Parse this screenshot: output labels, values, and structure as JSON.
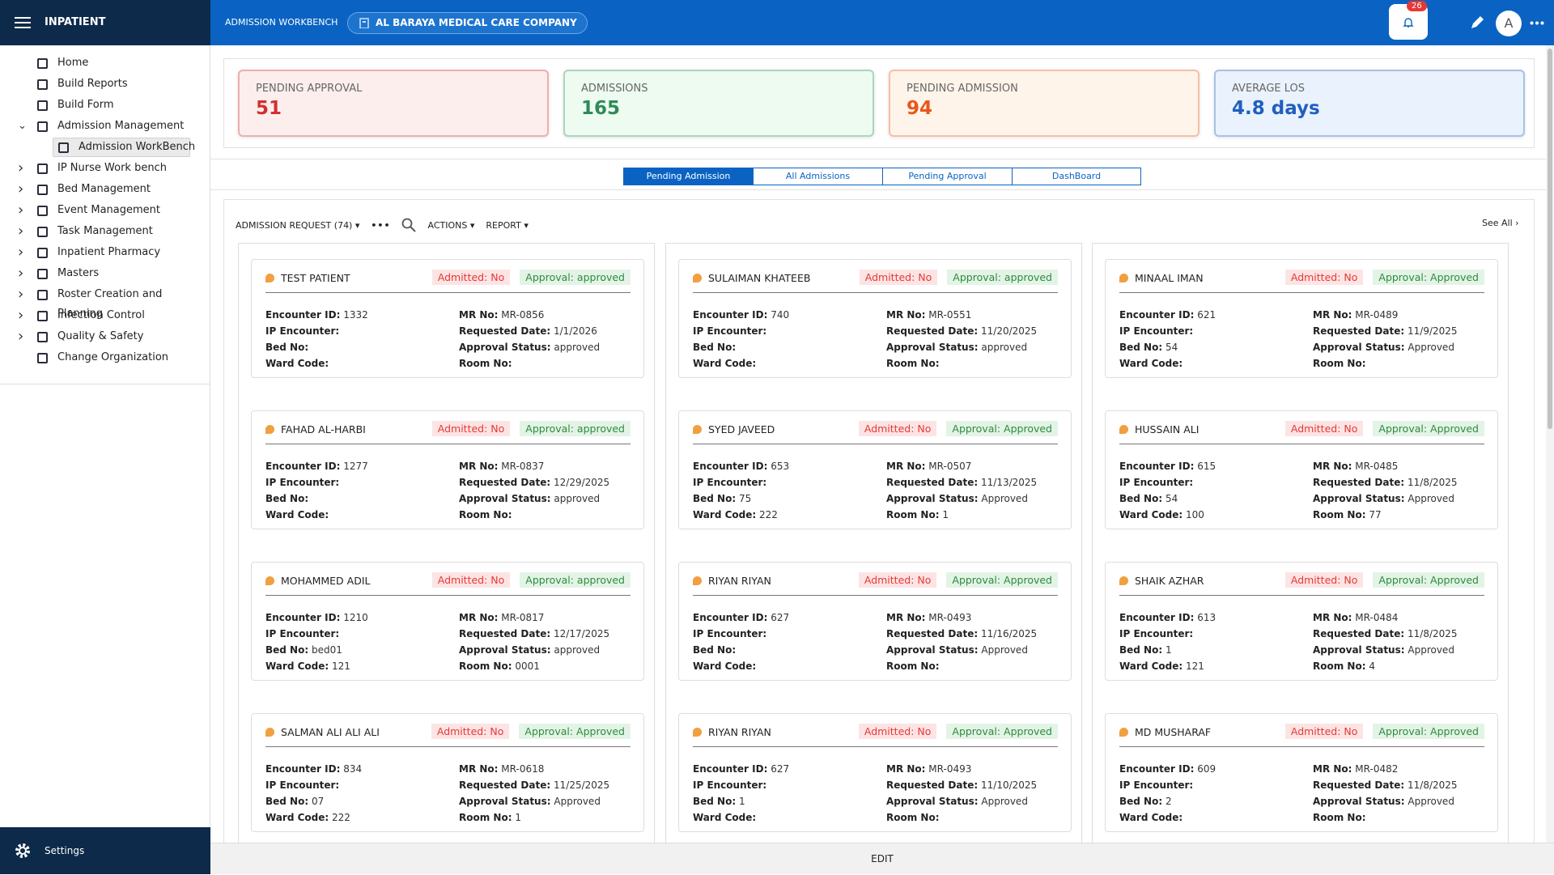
{
  "header": {
    "app_title": "INPATIENT",
    "page_title": "ADMISSION WORKBENCH",
    "organization": "AL BARAYA MEDICAL CARE COMPANY",
    "notification_count": 26,
    "avatar": "A"
  },
  "sidebar": {
    "items": [
      {
        "label": "Home"
      },
      {
        "label": "Build Reports"
      },
      {
        "label": "Build Form"
      },
      {
        "label": "Admission Management",
        "expand": "open"
      },
      {
        "label": "Admission WorkBench",
        "level": 2,
        "selected": true
      },
      {
        "label": "IP Nurse Work bench",
        "expand": "closed"
      },
      {
        "label": "Bed Management",
        "expand": "closed"
      },
      {
        "label": "Event Management",
        "expand": "closed"
      },
      {
        "label": "Task Management",
        "expand": "closed"
      },
      {
        "label": "Inpatient Pharmacy",
        "expand": "closed"
      },
      {
        "label": "Masters",
        "expand": "closed"
      },
      {
        "label": "Roster Creation and Planning",
        "expand": "closed"
      },
      {
        "label": "Infection Control",
        "expand": "closed"
      },
      {
        "label": "Quality & Safety",
        "expand": "closed"
      },
      {
        "label": "Change Organization"
      }
    ],
    "settings": "Settings"
  },
  "kpis": [
    {
      "label": "PENDING APPROVAL",
      "value": 51,
      "color": "#d32f2f"
    },
    {
      "label": "ADMISSIONS",
      "value": 165,
      "color": "#2e8b57"
    },
    {
      "label": "PENDING ADMISSION",
      "value": 94,
      "color": "#e8581c"
    },
    {
      "label": "AVERAGE LOS",
      "value": "4.8 days",
      "color": "#1f5fbf"
    }
  ],
  "tabs": {
    "items": [
      "Pending Admission",
      "All Admissions",
      "Pending Approval",
      "DashBoard"
    ],
    "active": 0
  },
  "toolbar": {
    "request": "ADMISSION REQUEST (74)",
    "actions": "ACTIONS",
    "report": "REPORT",
    "see_all": "See All"
  },
  "field_labels": {
    "encounter_id": "Encounter ID:",
    "ip_encounter": "IP Encounter:",
    "bed_no": "Bed No:",
    "ward_code": "Ward Code:",
    "mr_no": "MR No:",
    "requested_date": "Requested Date:",
    "approval_status": "Approval Status:",
    "room_no": "Room No:"
  },
  "patients": [
    {
      "name": "TEST PATIENT",
      "admitted": "Admitted: No",
      "approval": "Approval: approved",
      "fields": {
        "encounter_id": "1332",
        "mr_no": "MR-0856",
        "requested_date": "1/1/2026",
        "approval_status": "approved"
      }
    },
    {
      "name": "SULAIMAN KHATEEB",
      "admitted": "Admitted: No",
      "approval": "Approval: approved",
      "fields": {
        "encounter_id": "740",
        "mr_no": "MR-0551",
        "requested_date": "11/20/2025",
        "approval_status": "approved"
      }
    },
    {
      "name": "MINAAL IMAN",
      "admitted": "Admitted: No",
      "approval": "Approval: Approved",
      "fields": {
        "encounter_id": "621",
        "bed_no": "54",
        "mr_no": "MR-0489",
        "requested_date": "11/9/2025",
        "approval_status": "Approved"
      }
    },
    {
      "name": "FAHAD AL-HARBI",
      "admitted": "Admitted: No",
      "approval": "Approval: approved",
      "fields": {
        "encounter_id": "1277",
        "mr_no": "MR-0837",
        "requested_date": "12/29/2025",
        "approval_status": "approved"
      }
    },
    {
      "name": "SYED JAVEED",
      "admitted": "Admitted: No",
      "approval": "Approval: Approved",
      "fields": {
        "encounter_id": "653",
        "bed_no": "75",
        "ward_code": "222",
        "mr_no": "MR-0507",
        "requested_date": "11/13/2025",
        "approval_status": "Approved",
        "room_no": "1"
      }
    },
    {
      "name": "HUSSAIN ALI",
      "admitted": "Admitted: No",
      "approval": "Approval: Approved",
      "fields": {
        "encounter_id": "615",
        "bed_no": "54",
        "ward_code": "100",
        "mr_no": "MR-0485",
        "requested_date": "11/8/2025",
        "approval_status": "Approved",
        "room_no": "77"
      }
    },
    {
      "name": "MOHAMMED ADIL",
      "admitted": "Admitted: No",
      "approval": "Approval: approved",
      "fields": {
        "encounter_id": "1210",
        "bed_no": "bed01",
        "ward_code": "121",
        "mr_no": "MR-0817",
        "requested_date": "12/17/2025",
        "approval_status": "approved",
        "room_no": "0001"
      }
    },
    {
      "name": "RIYAN RIYAN",
      "admitted": "Admitted: No",
      "approval": "Approval: Approved",
      "fields": {
        "encounter_id": "627",
        "mr_no": "MR-0493",
        "requested_date": "11/16/2025",
        "approval_status": "Approved"
      }
    },
    {
      "name": "SHAIK AZHAR",
      "admitted": "Admitted: No",
      "approval": "Approval: Approved",
      "fields": {
        "encounter_id": "613",
        "bed_no": "1",
        "ward_code": "121",
        "mr_no": "MR-0484",
        "requested_date": "11/8/2025",
        "approval_status": "Approved",
        "room_no": "4"
      }
    },
    {
      "name": "SALMAN ALI ALI ALI",
      "admitted": "Admitted: No",
      "approval": "Approval: Approved",
      "fields": {
        "encounter_id": "834",
        "bed_no": "07",
        "ward_code": "222",
        "mr_no": "MR-0618",
        "requested_date": "11/25/2025",
        "approval_status": "Approved",
        "room_no": "1"
      }
    },
    {
      "name": "RIYAN RIYAN",
      "admitted": "Admitted: No",
      "approval": "Approval: Approved",
      "fields": {
        "encounter_id": "627",
        "bed_no": "1",
        "mr_no": "MR-0493",
        "requested_date": "11/10/2025",
        "approval_status": "Approved"
      }
    },
    {
      "name": "MD MUSHARAF",
      "admitted": "Admitted: No",
      "approval": "Approval: Approved",
      "fields": {
        "encounter_id": "609",
        "bed_no": "2",
        "mr_no": "MR-0482",
        "requested_date": "11/8/2025",
        "approval_status": "Approved"
      }
    }
  ],
  "footer": {
    "edit": "EDIT"
  }
}
